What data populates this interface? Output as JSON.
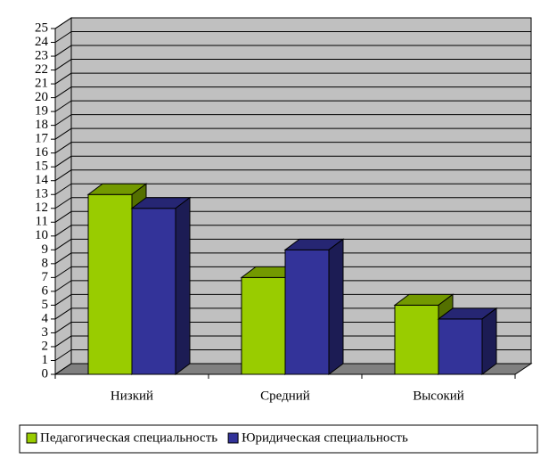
{
  "chart_data": {
    "type": "bar3d",
    "categories": [
      "Низкий",
      "Средний",
      "Высокий"
    ],
    "series": [
      {
        "name": "Педагогическая специальность",
        "color": "#99cc00",
        "values": [
          13,
          7,
          5
        ]
      },
      {
        "name": "Юридическая специальность",
        "color": "#333399",
        "values": [
          12,
          9,
          4
        ]
      }
    ],
    "ylim": [
      0,
      25
    ],
    "yticks": [
      0,
      1,
      2,
      3,
      4,
      5,
      6,
      7,
      8,
      9,
      10,
      11,
      12,
      13,
      14,
      15,
      16,
      17,
      18,
      19,
      20,
      21,
      22,
      23,
      24,
      25
    ],
    "grid": true,
    "legend": "bottom"
  }
}
